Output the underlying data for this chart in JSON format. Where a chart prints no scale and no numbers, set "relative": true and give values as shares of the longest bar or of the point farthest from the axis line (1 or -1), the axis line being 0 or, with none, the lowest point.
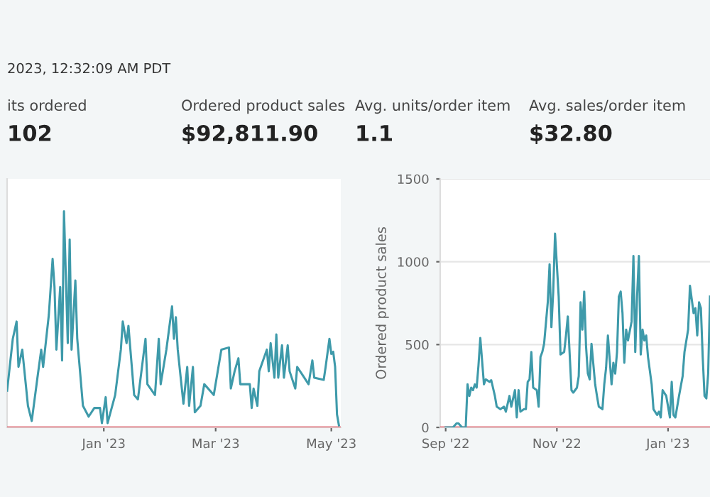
{
  "chart_data": [
    {
      "type": "other",
      "annotations": [
        "2023, 12:32:09 AM PDT",
        "its ordered",
        "102",
        "Ordered product sales",
        "$92,811.90",
        "Avg. units/order item",
        "1.1",
        "Avg. sales/order item",
        "$32.80"
      ]
    },
    {
      "type": "line",
      "relative": true,
      "xlim": [
        "2022-11-11",
        "2023-05-06"
      ],
      "xticks": [
        {
          "value": "2023-01-01",
          "label": "Jan '23"
        },
        {
          "value": "2023-03-01",
          "label": "Mar '23"
        },
        {
          "value": "2023-05-01",
          "label": "May '23"
        }
      ],
      "ref_lines": [
        {
          "axis": "y",
          "value": 0,
          "color": "#e0707a"
        }
      ],
      "series": [
        {
          "color": "#3e9aaa",
          "x": [
            "2022-11-11",
            "2022-11-14",
            "2022-11-16",
            "2022-11-17",
            "2022-11-19",
            "2022-11-22",
            "2022-11-24",
            "2022-11-27",
            "2022-11-29",
            "2022-11-30",
            "2022-12-03",
            "2022-12-05",
            "2022-12-06",
            "2022-12-07",
            "2022-12-09",
            "2022-12-10",
            "2022-12-11",
            "2022-12-13",
            "2022-12-14",
            "2022-12-15",
            "2022-12-17",
            "2022-12-18",
            "2022-12-21",
            "2022-12-24",
            "2022-12-27",
            "2022-12-30",
            "2022-12-31",
            "2023-01-02",
            "2023-01-03",
            "2023-01-07",
            "2023-01-10",
            "2023-01-11",
            "2023-01-13",
            "2023-01-14",
            "2023-01-17",
            "2023-01-19",
            "2023-01-23",
            "2023-01-24",
            "2023-01-28",
            "2023-01-30",
            "2023-01-31",
            "2023-02-03",
            "2023-02-06",
            "2023-02-07",
            "2023-02-08",
            "2023-02-09",
            "2023-02-12",
            "2023-02-14",
            "2023-02-15",
            "2023-02-17",
            "2023-02-18",
            "2023-02-21",
            "2023-02-23",
            "2023-02-28",
            "2023-03-04",
            "2023-03-08",
            "2023-03-09",
            "2023-03-11",
            "2023-03-13",
            "2023-03-14",
            "2023-03-19",
            "2023-03-20",
            "2023-03-21",
            "2023-03-23",
            "2023-03-24",
            "2023-03-28",
            "2023-03-29",
            "2023-03-30",
            "2023-04-01",
            "2023-04-02",
            "2023-04-03",
            "2023-04-05",
            "2023-04-06",
            "2023-04-08",
            "2023-04-09",
            "2023-04-12",
            "2023-04-13",
            "2023-04-16",
            "2023-04-19",
            "2023-04-21",
            "2023-04-22",
            "2023-04-27",
            "2023-04-28",
            "2023-04-30",
            "2023-05-01",
            "2023-05-02",
            "2023-05-03",
            "2023-05-04",
            "2023-05-05"
          ],
          "values": [
            0.17,
            0.41,
            0.49,
            0.28,
            0.36,
            0.1,
            0.03,
            0.23,
            0.36,
            0.28,
            0.52,
            0.78,
            0.65,
            0.36,
            0.65,
            0.31,
            1.0,
            0.39,
            0.87,
            0.36,
            0.68,
            0.41,
            0.1,
            0.05,
            0.09,
            0.09,
            0.02,
            0.14,
            0.02,
            0.15,
            0.36,
            0.49,
            0.39,
            0.47,
            0.15,
            0.13,
            0.41,
            0.2,
            0.15,
            0.41,
            0.2,
            0.36,
            0.56,
            0.41,
            0.51,
            0.36,
            0.11,
            0.28,
            0.1,
            0.28,
            0.07,
            0.1,
            0.2,
            0.15,
            0.36,
            0.37,
            0.18,
            0.26,
            0.32,
            0.2,
            0.2,
            0.09,
            0.18,
            0.1,
            0.26,
            0.36,
            0.26,
            0.39,
            0.23,
            0.43,
            0.23,
            0.38,
            0.23,
            0.38,
            0.26,
            0.18,
            0.28,
            0.24,
            0.2,
            0.31,
            0.23,
            0.22,
            0.28,
            0.41,
            0.34,
            0.35,
            0.28,
            0.06,
            0.01
          ]
        }
      ]
    },
    {
      "type": "line",
      "ylabel": "Ordered product sales",
      "xlim": [
        "2022-08-29",
        "2023-01-24"
      ],
      "ylim": [
        0,
        1500
      ],
      "yticks": [
        0,
        500,
        1000,
        1500
      ],
      "xticks": [
        {
          "value": "2022-09-01",
          "label": "Sep '22"
        },
        {
          "value": "2022-11-01",
          "label": "Nov '22"
        },
        {
          "value": "2023-01-01",
          "label": "Jan '23"
        }
      ],
      "grid": "y",
      "ref_lines": [
        {
          "axis": "y",
          "value": 0,
          "color": "#e0707a"
        }
      ],
      "series": [
        {
          "color": "#3e9aaa",
          "x": [
            "2022-09-01",
            "2022-09-05",
            "2022-09-07",
            "2022-09-08",
            "2022-09-10",
            "2022-09-12",
            "2022-09-13",
            "2022-09-14",
            "2022-09-15",
            "2022-09-16",
            "2022-09-17",
            "2022-09-18",
            "2022-09-19",
            "2022-09-20",
            "2022-09-22",
            "2022-09-23",
            "2022-09-25",
            "2022-09-26",
            "2022-09-28",
            "2022-09-29",
            "2022-10-01",
            "2022-10-03",
            "2022-10-04",
            "2022-10-06",
            "2022-10-07",
            "2022-10-09",
            "2022-10-10",
            "2022-10-11",
            "2022-10-12",
            "2022-10-14",
            "2022-10-15",
            "2022-10-16",
            "2022-10-17",
            "2022-10-18",
            "2022-10-19",
            "2022-10-21",
            "2022-10-22",
            "2022-10-23",
            "2022-10-24",
            "2022-10-25",
            "2022-10-27",
            "2022-10-28",
            "2022-10-29",
            "2022-10-30",
            "2022-10-31",
            "2022-11-02",
            "2022-11-03",
            "2022-11-05",
            "2022-11-06",
            "2022-11-07",
            "2022-11-09",
            "2022-11-10",
            "2022-11-12",
            "2022-11-13",
            "2022-11-14",
            "2022-11-15",
            "2022-11-16",
            "2022-11-17",
            "2022-11-18",
            "2022-11-19",
            "2022-11-20",
            "2022-11-22",
            "2022-11-23",
            "2022-11-24",
            "2022-11-26",
            "2022-11-27",
            "2022-11-28",
            "2022-11-29",
            "2022-12-01",
            "2022-12-02",
            "2022-12-03",
            "2022-12-04",
            "2022-12-05",
            "2022-12-06",
            "2022-12-07",
            "2022-12-08",
            "2022-12-09",
            "2022-12-10",
            "2022-12-12",
            "2022-12-13",
            "2022-12-14",
            "2022-12-15",
            "2022-12-16",
            "2022-12-17",
            "2022-12-18",
            "2022-12-19",
            "2022-12-20",
            "2022-12-21",
            "2022-12-23",
            "2022-12-24",
            "2022-12-26",
            "2022-12-27",
            "2022-12-28",
            "2022-12-29",
            "2022-12-31",
            "2023-01-01",
            "2023-01-02",
            "2023-01-03",
            "2023-01-04",
            "2023-01-05",
            "2023-01-07",
            "2023-01-09",
            "2023-01-10",
            "2023-01-12",
            "2023-01-13",
            "2023-01-15",
            "2023-01-16",
            "2023-01-17",
            "2023-01-18",
            "2023-01-19",
            "2023-01-20",
            "2023-01-21",
            "2023-01-22",
            "2023-01-23",
            "2023-01-24"
          ],
          "values": [
            0,
            0,
            25,
            25,
            0,
            0,
            260,
            190,
            240,
            225,
            260,
            240,
            375,
            540,
            260,
            290,
            275,
            285,
            190,
            125,
            110,
            125,
            95,
            190,
            125,
            225,
            60,
            225,
            95,
            110,
            110,
            275,
            290,
            455,
            240,
            225,
            125,
            425,
            455,
            505,
            755,
            985,
            605,
            820,
            1170,
            790,
            440,
            455,
            555,
            670,
            225,
            210,
            240,
            310,
            755,
            590,
            820,
            490,
            325,
            290,
            505,
            260,
            190,
            125,
            110,
            260,
            360,
            555,
            260,
            390,
            325,
            455,
            790,
            820,
            690,
            390,
            590,
            525,
            640,
            1035,
            455,
            790,
            1035,
            440,
            590,
            525,
            555,
            425,
            260,
            110,
            75,
            95,
            60,
            225,
            190,
            125,
            60,
            275,
            75,
            60,
            190,
            310,
            455,
            590,
            855,
            690,
            720,
            555,
            755,
            720,
            425,
            190,
            175,
            325,
            790
          ]
        }
      ]
    }
  ]
}
